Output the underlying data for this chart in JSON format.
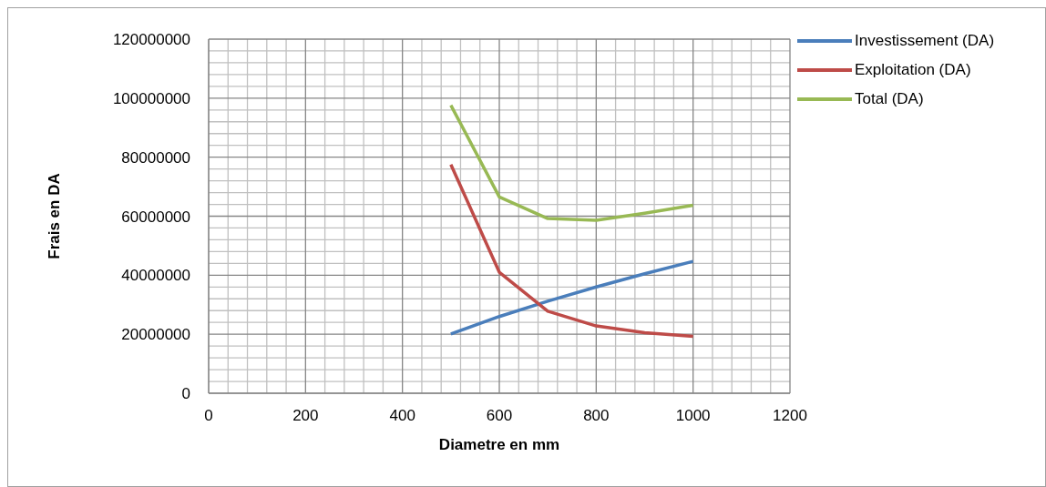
{
  "chart_data": {
    "type": "line",
    "xlabel": "Diametre en mm",
    "ylabel": "Frais en DA",
    "x": [
      500,
      600,
      700,
      800,
      900,
      1000
    ],
    "series": [
      {
        "name": "Investissement (DA)",
        "color": "#4a7ebb",
        "values": [
          20100000,
          26000000,
          31200000,
          36000000,
          40500000,
          44700000
        ]
      },
      {
        "name": "Exploitation (DA)",
        "color": "#be4b48",
        "values": [
          77500000,
          41000000,
          27800000,
          22800000,
          20500000,
          19300000
        ]
      },
      {
        "name": "Total (DA)",
        "color": "#98b954",
        "values": [
          97600000,
          66500000,
          59200000,
          58600000,
          61000000,
          63700000
        ]
      }
    ],
    "xlim": [
      0,
      1200
    ],
    "xticks": [
      0,
      200,
      400,
      600,
      800,
      1000,
      1200
    ],
    "ylim": [
      0,
      120000000
    ],
    "yticks": [
      0,
      20000000,
      40000000,
      60000000,
      80000000,
      100000000,
      120000000
    ],
    "grid": true,
    "legend": "right",
    "marker": "none",
    "line_style": "solid"
  }
}
